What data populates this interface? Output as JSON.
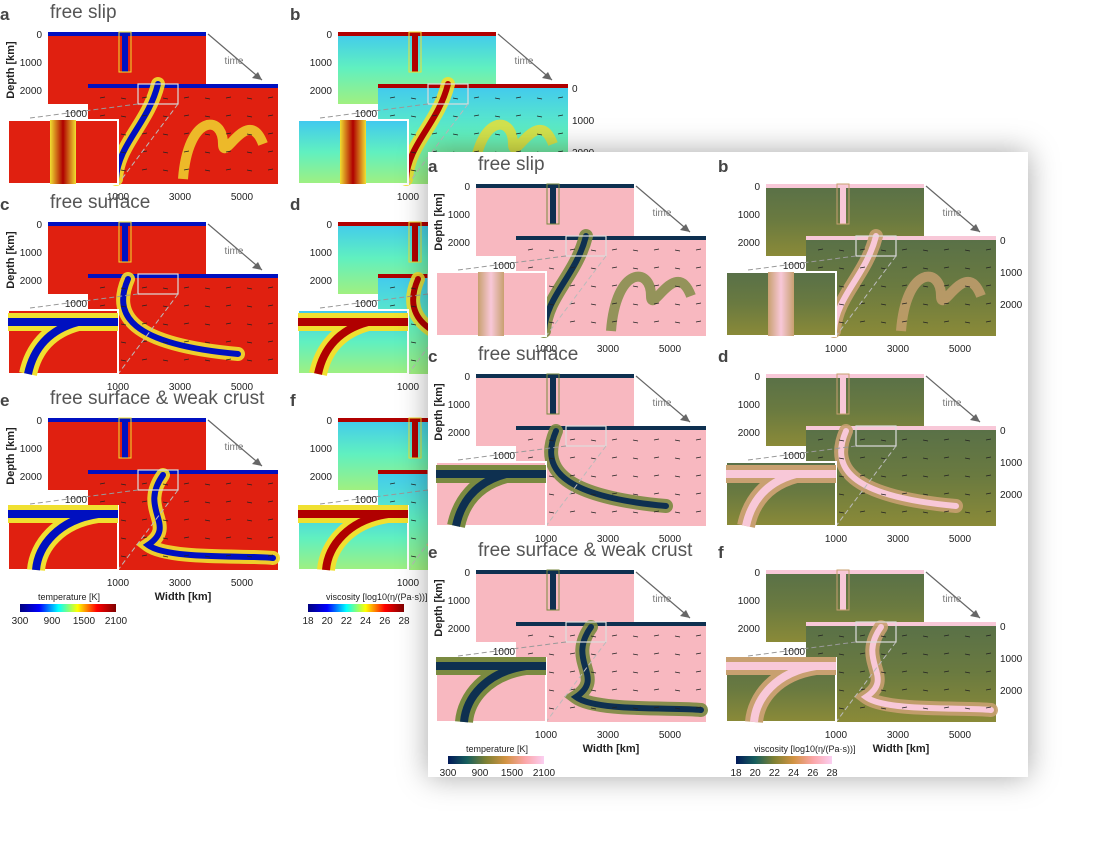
{
  "panels": [
    {
      "letter": "a",
      "title": "free slip"
    },
    {
      "letter": "b",
      "title": ""
    },
    {
      "letter": "c",
      "title": "free surface"
    },
    {
      "letter": "d",
      "title": ""
    },
    {
      "letter": "e",
      "title": "free surface & weak crust"
    },
    {
      "letter": "f",
      "title": ""
    }
  ],
  "time_label": "time",
  "depth_axis": {
    "label": "Depth [km]",
    "ticks": [
      "0",
      "1000",
      "2000"
    ]
  },
  "right_axis_ticks": [
    "0",
    "1000",
    "2000"
  ],
  "inset_tick": "1000",
  "width_axis": {
    "label": "Width [km]",
    "ticks": [
      "1000",
      "3000",
      "5000"
    ]
  },
  "temperature_colorbar": {
    "label": "temperature [K]",
    "ticks": [
      "300",
      "900",
      "1500",
      "2100"
    ]
  },
  "viscosity_colorbar": {
    "label": "viscosity [log10(η/(Pa·s))]",
    "ticks": [
      "18",
      "20",
      "22",
      "24",
      "26",
      "28"
    ]
  },
  "colors": {
    "jet": [
      "#00007f",
      "#0000ff",
      "#00ffff",
      "#ffff00",
      "#ff0000",
      "#800000"
    ],
    "batlow": [
      "#011959",
      "#175f5d",
      "#808133",
      "#d29343",
      "#fba5a6",
      "#fbcff2"
    ]
  }
}
